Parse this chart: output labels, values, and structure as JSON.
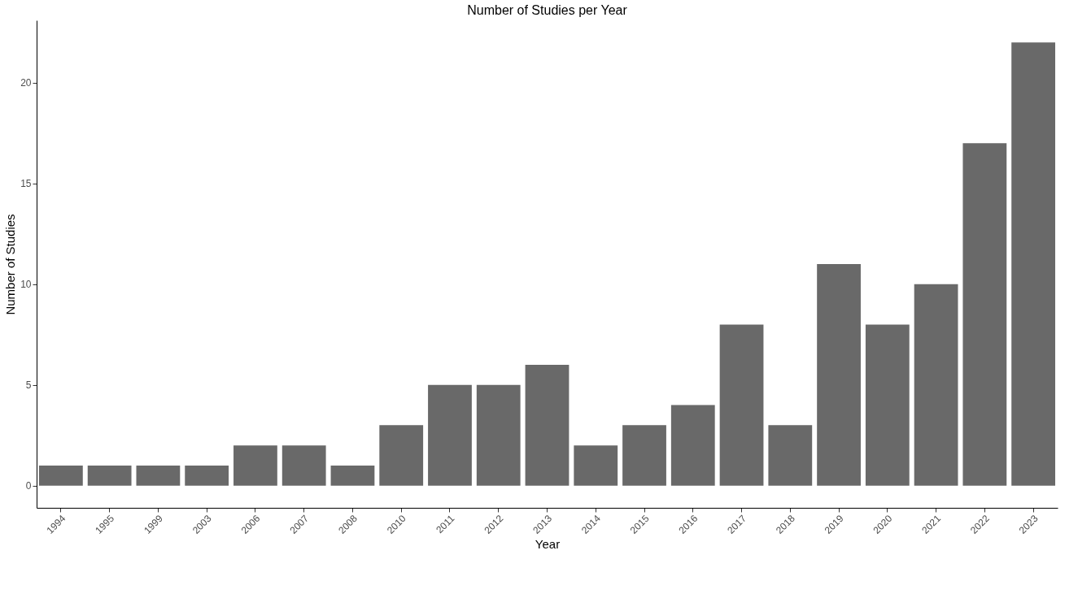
{
  "chart_data": {
    "type": "bar",
    "title": "Number of Studies per Year",
    "xlabel": "Year",
    "ylabel": "Number of Studies",
    "categories": [
      "1994",
      "1995",
      "1999",
      "2003",
      "2006",
      "2007",
      "2008",
      "2010",
      "2011",
      "2012",
      "2013",
      "2014",
      "2015",
      "2016",
      "2017",
      "2018",
      "2019",
      "2020",
      "2021",
      "2022",
      "2023"
    ],
    "values": [
      1,
      1,
      1,
      1,
      2,
      2,
      1,
      3,
      5,
      5,
      6,
      2,
      3,
      4,
      8,
      3,
      11,
      8,
      10,
      17,
      22
    ],
    "color": "#696969",
    "ylim": [
      -1.1,
      23.1
    ],
    "yticks": [
      0,
      5,
      10,
      15,
      20
    ],
    "grid": false
  }
}
